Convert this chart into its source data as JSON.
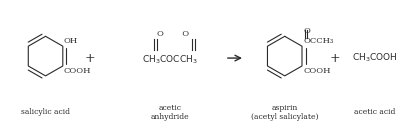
{
  "bg_color": "#ffffff",
  "fig_width": 4.1,
  "fig_height": 1.28,
  "dpi": 100,
  "col": "#2a2a2a",
  "lw": 0.8,
  "salicylic_label": "salicylic acid",
  "acetic_label": "acetic\nanhydride",
  "aspirin_label": "aspirin\n(acetyl salicylate)",
  "acetic_acid_label": "acetic acid",
  "salicylic_oh": "OH",
  "salicylic_cooh": "COOH",
  "aspirin_ester_o": "O",
  "aspirin_ester": "OCCH₃",
  "aspirin_cooh": "COOH",
  "acetic_anhydride_top": "O      O",
  "acetic_anhydride_formula": "CH₃COCCH₃",
  "acetic_acid_formula": "CH₃COOH"
}
